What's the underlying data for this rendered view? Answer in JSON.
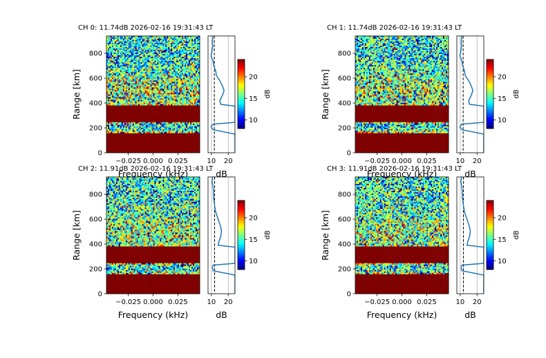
{
  "chart_data": [
    {
      "type": "heatmap",
      "title": "CH 0: 11.74dB 2026-02-16 19:31:43 LT",
      "xlabel": "Frequency (kHz)",
      "ylabel": "Range [km]",
      "xlim": [
        -0.047,
        0.047
      ],
      "ylim": [
        0,
        940
      ],
      "xticks": [
        "-0.025",
        "0.000",
        "0.025"
      ],
      "yticks": [
        "0",
        "200",
        "400",
        "600",
        "800"
      ],
      "colorbar": {
        "label": "dB",
        "colormap": "jet",
        "range": [
          8,
          24
        ],
        "ticks": [
          "10",
          "15",
          "20"
        ]
      },
      "profile": {
        "xlabel": "dB",
        "xlim": [
          8,
          24
        ],
        "xticks": [
          "10",
          "20"
        ],
        "noise_floor_db": 11.74,
        "range_km": [
          940,
          900,
          860,
          820,
          780,
          740,
          700,
          660,
          620,
          580,
          540,
          500,
          460,
          420,
          390,
          375,
          350,
          300,
          260,
          245,
          230,
          210,
          200,
          185,
          150,
          100,
          50,
          0
        ],
        "power_db": [
          11.0,
          10.6,
          10.8,
          10.4,
          9.8,
          11.0,
          11.4,
          12.5,
          13.0,
          15.0,
          16.5,
          17.5,
          16.5,
          15.0,
          15.5,
          24,
          24,
          24,
          24,
          24,
          11.0,
          9.8,
          10.2,
          11.0,
          24,
          24,
          24,
          24
        ]
      }
    },
    {
      "type": "heatmap",
      "title": "CH 1: 11.74dB 2026-02-16 19:31:43 LT",
      "xlabel": "Frequency (kHz)",
      "ylabel": "Range [km]",
      "xlim": [
        -0.047,
        0.047
      ],
      "ylim": [
        0,
        940
      ],
      "xticks": [
        "-0.025",
        "0.000",
        "0.025"
      ],
      "yticks": [
        "0",
        "200",
        "400",
        "600",
        "800"
      ],
      "colorbar": {
        "label": "dB",
        "colormap": "jet",
        "range": [
          8,
          24
        ],
        "ticks": [
          "10",
          "15",
          "20"
        ]
      },
      "profile": {
        "xlabel": "dB",
        "xlim": [
          8,
          24
        ],
        "xticks": [
          "10",
          "20"
        ],
        "noise_floor_db": 11.74,
        "range_km": [
          940,
          900,
          860,
          820,
          780,
          740,
          700,
          660,
          620,
          580,
          540,
          500,
          460,
          420,
          390,
          375,
          350,
          300,
          260,
          245,
          230,
          210,
          200,
          185,
          150,
          100,
          50,
          0
        ],
        "power_db": [
          11.0,
          10.6,
          10.8,
          10.4,
          9.8,
          11.0,
          11.4,
          12.5,
          13.0,
          15.0,
          16.5,
          17.5,
          16.5,
          15.0,
          15.5,
          24,
          24,
          24,
          24,
          24,
          11.0,
          9.8,
          10.2,
          11.0,
          24,
          24,
          24,
          24
        ]
      }
    },
    {
      "type": "heatmap",
      "title": "CH 2: 11.91dB 2026-02-16 19:31:43 LT",
      "xlabel": "Frequency (kHz)",
      "ylabel": "Range [km]",
      "xlim": [
        -0.047,
        0.047
      ],
      "ylim": [
        0,
        940
      ],
      "xticks": [
        "-0.025",
        "0.000",
        "0.025"
      ],
      "yticks": [
        "0",
        "200",
        "400",
        "600",
        "800"
      ],
      "colorbar": {
        "label": "dB",
        "colormap": "jet",
        "range": [
          8,
          24
        ],
        "ticks": [
          "10",
          "15",
          "20"
        ]
      },
      "profile": {
        "xlabel": "dB",
        "xlim": [
          8,
          24
        ],
        "xticks": [
          "10",
          "20"
        ],
        "noise_floor_db": 11.91,
        "range_km": [
          940,
          900,
          860,
          820,
          780,
          740,
          700,
          660,
          620,
          580,
          540,
          500,
          460,
          420,
          390,
          375,
          350,
          300,
          260,
          245,
          230,
          210,
          200,
          185,
          150,
          100,
          50,
          0
        ],
        "power_db": [
          10.8,
          10.4,
          11.0,
          11.2,
          11.2,
          11.6,
          12.0,
          12.5,
          13.5,
          14.5,
          15.5,
          16.0,
          15.5,
          14.5,
          14.0,
          24,
          24,
          24,
          24,
          24,
          11.0,
          10.6,
          10.8,
          11.0,
          24,
          24,
          24,
          24
        ]
      }
    },
    {
      "type": "heatmap",
      "title": "CH 3: 11.91dB 2026-02-16 19:31:43 LT",
      "xlabel": "Frequency (kHz)",
      "ylabel": "Range [km]",
      "xlim": [
        -0.047,
        0.047
      ],
      "ylim": [
        0,
        940
      ],
      "xticks": [
        "-0.025",
        "0.000",
        "0.025"
      ],
      "yticks": [
        "0",
        "200",
        "400",
        "600",
        "800"
      ],
      "colorbar": {
        "label": "dB",
        "colormap": "jet",
        "range": [
          8,
          24
        ],
        "ticks": [
          "10",
          "15",
          "20"
        ]
      },
      "profile": {
        "xlabel": "dB",
        "xlim": [
          8,
          24
        ],
        "xticks": [
          "10",
          "20"
        ],
        "noise_floor_db": 11.91,
        "range_km": [
          940,
          900,
          860,
          820,
          780,
          740,
          700,
          660,
          620,
          580,
          540,
          500,
          460,
          420,
          390,
          375,
          350,
          300,
          260,
          245,
          230,
          210,
          200,
          185,
          150,
          100,
          50,
          0
        ],
        "power_db": [
          10.8,
          10.4,
          11.0,
          11.2,
          11.2,
          11.6,
          12.0,
          12.5,
          13.5,
          14.5,
          15.5,
          16.0,
          15.5,
          14.5,
          14.0,
          24,
          24,
          24,
          24,
          24,
          11.0,
          10.6,
          10.8,
          11.0,
          24,
          24,
          24,
          24
        ]
      }
    }
  ],
  "colors": {
    "profile_line": "#1f77b4",
    "saturated": "#7f0000",
    "grid": "#b0b0b0"
  }
}
